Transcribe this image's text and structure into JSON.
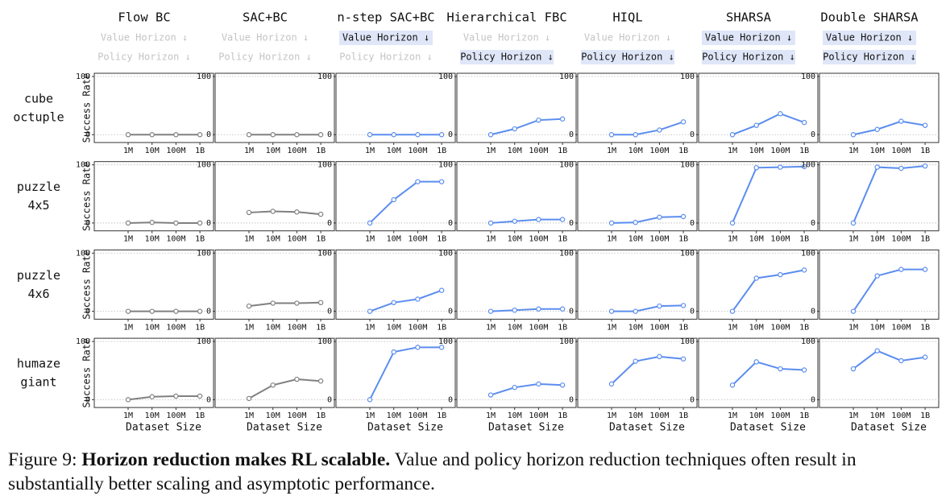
{
  "columns": [
    {
      "title": "Flow BC",
      "value_horizon": false,
      "policy_horizon": false
    },
    {
      "title": "SAC+BC",
      "value_horizon": false,
      "policy_horizon": false
    },
    {
      "title": "n-step SAC+BC",
      "value_horizon": true,
      "policy_horizon": false
    },
    {
      "title": "Hierarchical FBC",
      "value_horizon": false,
      "policy_horizon": true
    },
    {
      "title": "HIQL",
      "value_horizon": false,
      "policy_horizon": true
    },
    {
      "title": "SHARSA",
      "value_horizon": true,
      "policy_horizon": true
    },
    {
      "title": "Double SHARSA",
      "value_horizon": true,
      "policy_horizon": true
    }
  ],
  "badges": {
    "value": "Value Horizon ↓",
    "policy": "Policy Horizon ↓"
  },
  "rows": [
    {
      "label": [
        "cube",
        "octuple"
      ]
    },
    {
      "label": [
        "puzzle",
        "4x5"
      ]
    },
    {
      "label": [
        "puzzle",
        "4x6"
      ]
    },
    {
      "label": [
        "humaze",
        "giant"
      ]
    }
  ],
  "y_label": "Success Rate",
  "x_label": "Dataset Size",
  "chart_data": [
    {
      "type": "line",
      "color": "#808080",
      "categories": [
        "1M",
        "10M",
        "100M",
        "1B"
      ],
      "values": [
        0,
        0,
        0,
        0
      ],
      "ylim": [
        0,
        100
      ],
      "yticks": [
        0,
        100
      ],
      "grid": true
    },
    {
      "type": "line",
      "color": "#808080",
      "categories": [
        "1M",
        "10M",
        "100M",
        "1B"
      ],
      "values": [
        0,
        0,
        0,
        0
      ],
      "ylim": [
        0,
        100
      ],
      "yticks": [
        0,
        100
      ],
      "grid": true
    },
    {
      "type": "line",
      "color": "#5b8def",
      "categories": [
        "1M",
        "10M",
        "100M",
        "1B"
      ],
      "values": [
        0,
        0,
        0,
        0
      ],
      "ylim": [
        0,
        100
      ],
      "yticks": [
        0,
        100
      ],
      "grid": true
    },
    {
      "type": "line",
      "color": "#5b8def",
      "categories": [
        "1M",
        "10M",
        "100M",
        "1B"
      ],
      "values": [
        0,
        10,
        25,
        27
      ],
      "ylim": [
        0,
        100
      ],
      "yticks": [
        0,
        100
      ],
      "grid": true
    },
    {
      "type": "line",
      "color": "#5b8def",
      "categories": [
        "1M",
        "10M",
        "100M",
        "1B"
      ],
      "values": [
        0,
        0,
        8,
        22
      ],
      "ylim": [
        0,
        100
      ],
      "yticks": [
        0,
        100
      ],
      "grid": true
    },
    {
      "type": "line",
      "color": "#5b8def",
      "categories": [
        "1M",
        "10M",
        "100M",
        "1B"
      ],
      "values": [
        0,
        16,
        36,
        21
      ],
      "ylim": [
        0,
        100
      ],
      "yticks": [
        0,
        100
      ],
      "grid": true
    },
    {
      "type": "line",
      "color": "#5b8def",
      "categories": [
        "1M",
        "10M",
        "100M",
        "1B"
      ],
      "values": [
        0,
        9,
        23,
        16
      ],
      "ylim": [
        0,
        100
      ],
      "yticks": [
        0,
        100
      ],
      "grid": true
    },
    {
      "type": "line",
      "color": "#808080",
      "categories": [
        "1M",
        "10M",
        "100M",
        "1B"
      ],
      "values": [
        0,
        1,
        0,
        0
      ],
      "ylim": [
        0,
        100
      ],
      "yticks": [
        0,
        100
      ],
      "grid": true
    },
    {
      "type": "line",
      "color": "#808080",
      "categories": [
        "1M",
        "10M",
        "100M",
        "1B"
      ],
      "values": [
        18,
        20,
        19,
        15
      ],
      "ylim": [
        0,
        100
      ],
      "yticks": [
        0,
        100
      ],
      "grid": true
    },
    {
      "type": "line",
      "color": "#5b8def",
      "categories": [
        "1M",
        "10M",
        "100M",
        "1B"
      ],
      "values": [
        0,
        40,
        71,
        71
      ],
      "ylim": [
        0,
        100
      ],
      "yticks": [
        0,
        100
      ],
      "grid": true
    },
    {
      "type": "line",
      "color": "#5b8def",
      "categories": [
        "1M",
        "10M",
        "100M",
        "1B"
      ],
      "values": [
        0,
        3,
        6,
        6
      ],
      "ylim": [
        0,
        100
      ],
      "yticks": [
        0,
        100
      ],
      "grid": true
    },
    {
      "type": "line",
      "color": "#5b8def",
      "categories": [
        "1M",
        "10M",
        "100M",
        "1B"
      ],
      "values": [
        0,
        1,
        10,
        11
      ],
      "ylim": [
        0,
        100
      ],
      "yticks": [
        0,
        100
      ],
      "grid": true
    },
    {
      "type": "line",
      "color": "#5b8def",
      "categories": [
        "1M",
        "10M",
        "100M",
        "1B"
      ],
      "values": [
        0,
        95,
        96,
        97
      ],
      "ylim": [
        0,
        100
      ],
      "yticks": [
        0,
        100
      ],
      "grid": true
    },
    {
      "type": "line",
      "color": "#5b8def",
      "categories": [
        "1M",
        "10M",
        "100M",
        "1B"
      ],
      "values": [
        0,
        96,
        94,
        98
      ],
      "ylim": [
        0,
        100
      ],
      "yticks": [
        0,
        100
      ],
      "grid": true
    },
    {
      "type": "line",
      "color": "#808080",
      "categories": [
        "1M",
        "10M",
        "100M",
        "1B"
      ],
      "values": [
        0,
        0,
        0,
        0
      ],
      "ylim": [
        0,
        100
      ],
      "yticks": [
        0,
        100
      ],
      "grid": true
    },
    {
      "type": "line",
      "color": "#808080",
      "categories": [
        "1M",
        "10M",
        "100M",
        "1B"
      ],
      "values": [
        9,
        14,
        14,
        15
      ],
      "ylim": [
        0,
        100
      ],
      "yticks": [
        0,
        100
      ],
      "grid": true
    },
    {
      "type": "line",
      "color": "#5b8def",
      "categories": [
        "1M",
        "10M",
        "100M",
        "1B"
      ],
      "values": [
        0,
        15,
        21,
        36
      ],
      "ylim": [
        0,
        100
      ],
      "yticks": [
        0,
        100
      ],
      "grid": true
    },
    {
      "type": "line",
      "color": "#5b8def",
      "categories": [
        "1M",
        "10M",
        "100M",
        "1B"
      ],
      "values": [
        0,
        2,
        4,
        4
      ],
      "ylim": [
        0,
        100
      ],
      "yticks": [
        0,
        100
      ],
      "grid": true
    },
    {
      "type": "line",
      "color": "#5b8def",
      "categories": [
        "1M",
        "10M",
        "100M",
        "1B"
      ],
      "values": [
        0,
        0,
        9,
        10
      ],
      "ylim": [
        0,
        100
      ],
      "yticks": [
        0,
        100
      ],
      "grid": true
    },
    {
      "type": "line",
      "color": "#5b8def",
      "categories": [
        "1M",
        "10M",
        "100M",
        "1B"
      ],
      "values": [
        0,
        57,
        63,
        71
      ],
      "ylim": [
        0,
        100
      ],
      "yticks": [
        0,
        100
      ],
      "grid": true
    },
    {
      "type": "line",
      "color": "#5b8def",
      "categories": [
        "1M",
        "10M",
        "100M",
        "1B"
      ],
      "values": [
        0,
        61,
        72,
        72
      ],
      "ylim": [
        0,
        100
      ],
      "yticks": [
        0,
        100
      ],
      "grid": true
    },
    {
      "type": "line",
      "color": "#808080",
      "categories": [
        "1M",
        "10M",
        "100M",
        "1B"
      ],
      "values": [
        0,
        5,
        6,
        6
      ],
      "ylim": [
        0,
        100
      ],
      "yticks": [
        0,
        100
      ],
      "grid": true
    },
    {
      "type": "line",
      "color": "#808080",
      "categories": [
        "1M",
        "10M",
        "100M",
        "1B"
      ],
      "values": [
        2,
        25,
        35,
        32
      ],
      "ylim": [
        0,
        100
      ],
      "yticks": [
        0,
        100
      ],
      "grid": true
    },
    {
      "type": "line",
      "color": "#5b8def",
      "categories": [
        "1M",
        "10M",
        "100M",
        "1B"
      ],
      "values": [
        0,
        82,
        90,
        90
      ],
      "ylim": [
        0,
        100
      ],
      "yticks": [
        0,
        100
      ],
      "grid": true
    },
    {
      "type": "line",
      "color": "#5b8def",
      "categories": [
        "1M",
        "10M",
        "100M",
        "1B"
      ],
      "values": [
        8,
        21,
        27,
        25
      ],
      "ylim": [
        0,
        100
      ],
      "yticks": [
        0,
        100
      ],
      "grid": true
    },
    {
      "type": "line",
      "color": "#5b8def",
      "categories": [
        "1M",
        "10M",
        "100M",
        "1B"
      ],
      "values": [
        27,
        66,
        74,
        70
      ],
      "ylim": [
        0,
        100
      ],
      "yticks": [
        0,
        100
      ],
      "grid": true
    },
    {
      "type": "line",
      "color": "#5b8def",
      "categories": [
        "1M",
        "10M",
        "100M",
        "1B"
      ],
      "values": [
        25,
        65,
        53,
        51
      ],
      "ylim": [
        0,
        100
      ],
      "yticks": [
        0,
        100
      ],
      "grid": true
    },
    {
      "type": "line",
      "color": "#5b8def",
      "categories": [
        "1M",
        "10M",
        "100M",
        "1B"
      ],
      "values": [
        53,
        84,
        67,
        73
      ],
      "ylim": [
        0,
        100
      ],
      "yticks": [
        0,
        100
      ],
      "grid": true
    }
  ],
  "caption": {
    "label": "Figure 9:",
    "bold": "Horizon reduction makes RL scalable.",
    "text": "Value and policy horizon reduction techniques often result in substantially better scaling and asymptotic performance."
  }
}
